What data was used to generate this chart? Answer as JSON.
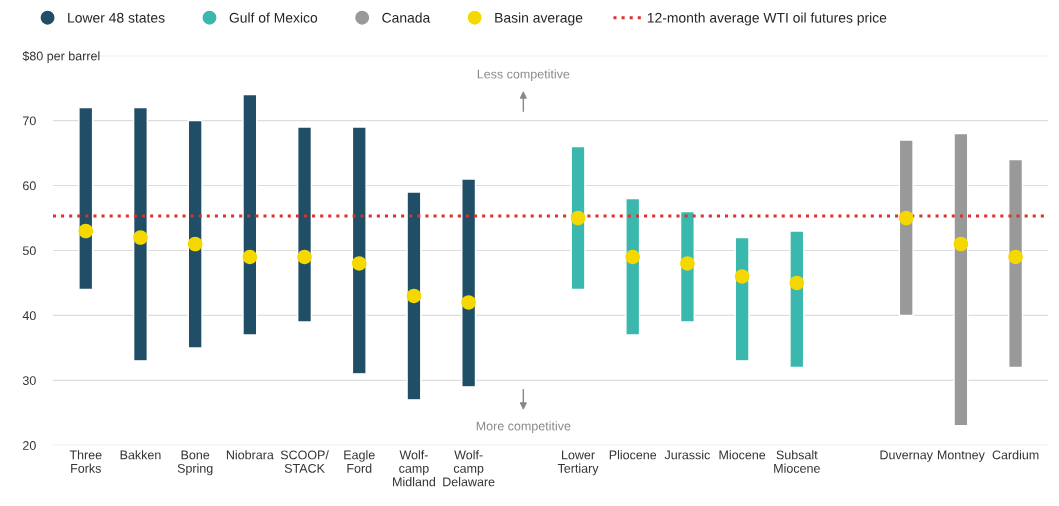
{
  "chart_data": {
    "type": "bar",
    "categories": [
      "Three\nForks",
      "Bakken",
      "Bone\nSpring",
      "Niobrara",
      "SCOOP/\nSTACK",
      "Eagle\nFord",
      "Wolf-\ncamp\nMidland",
      "Wolf-\ncamp\nDelaware",
      null,
      "Lower\nTertiary",
      "Pliocene",
      "Jurassic",
      "Miocene",
      "Subsalt\nMiocene",
      null,
      "Duvernay",
      "Montney",
      "Cardium"
    ],
    "series": [
      {
        "name": "Lower 48 states",
        "color": "#1f4e66",
        "values": [
          28,
          39,
          35,
          37,
          30,
          38,
          32,
          32,
          null,
          null,
          null,
          null,
          null,
          null,
          null,
          null,
          null,
          null
        ],
        "base": [
          44,
          33,
          35,
          37,
          39,
          31,
          27,
          29,
          null,
          null,
          null,
          null,
          null,
          null,
          null,
          null,
          null,
          null
        ]
      },
      {
        "name": "Gulf of Mexico",
        "color": "#3bb8ad",
        "values": [
          null,
          null,
          null,
          null,
          null,
          null,
          null,
          null,
          null,
          22,
          21,
          17,
          19,
          21,
          null,
          null,
          null,
          null
        ],
        "base": [
          null,
          null,
          null,
          null,
          null,
          null,
          null,
          null,
          null,
          44,
          37,
          39,
          33,
          32,
          null,
          null,
          null,
          null
        ]
      },
      {
        "name": "Canada",
        "color": "#999999",
        "values": [
          null,
          null,
          null,
          null,
          null,
          null,
          null,
          null,
          null,
          null,
          null,
          null,
          null,
          null,
          null,
          27,
          45,
          32
        ],
        "base": [
          null,
          null,
          null,
          null,
          null,
          null,
          null,
          null,
          null,
          null,
          null,
          null,
          null,
          null,
          null,
          40,
          23,
          32
        ]
      },
      {
        "name": "Basin average",
        "type": "scatter",
        "color": "#f5d800",
        "values": [
          53,
          52,
          51,
          49,
          49,
          48,
          43,
          42,
          null,
          55,
          49,
          48,
          46,
          45,
          null,
          55,
          51,
          49
        ]
      }
    ],
    "ref_lines": [
      {
        "axis": "y",
        "value": 55.3,
        "label": "12-month average WTI oil futures price",
        "color": "#d9342b",
        "line_style": "dotted"
      }
    ],
    "annotations": [
      "Less competitive",
      "More competitive"
    ],
    "ylim": [
      20,
      80
    ],
    "yticks": [
      20,
      30,
      40,
      50,
      60,
      70,
      {
        "value": 80,
        "label": "$80 per barrel"
      }
    ],
    "grid": "y",
    "legend": "top left",
    "marker": "circle"
  }
}
